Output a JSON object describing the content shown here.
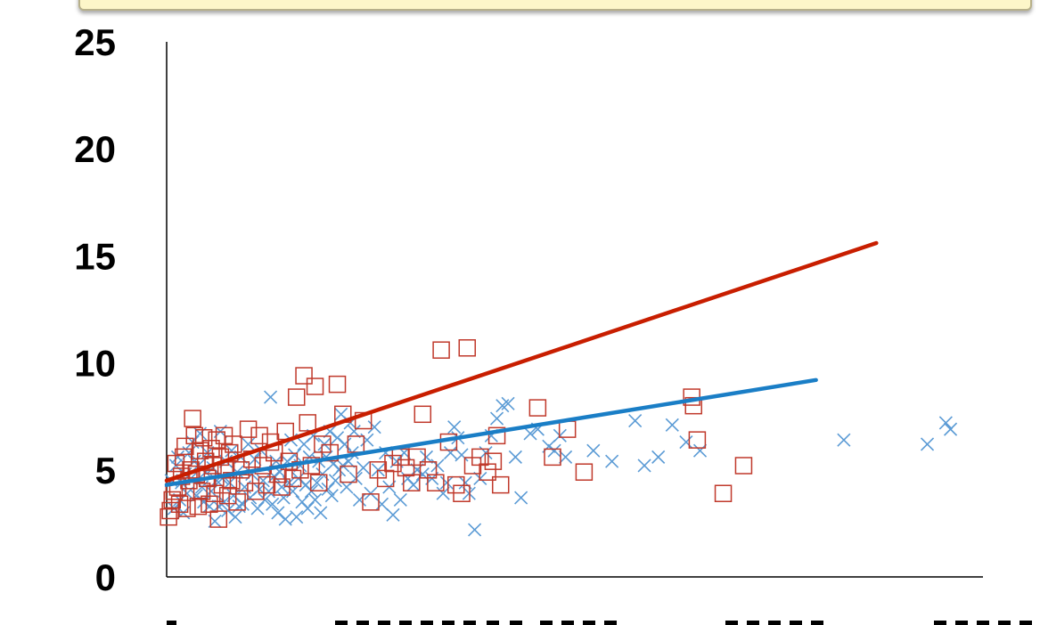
{
  "chart_data": {
    "type": "scatter",
    "title": "",
    "xlabel": "",
    "ylabel": "",
    "ylim": [
      0,
      25
    ],
    "y_ticks": [
      "0",
      "5",
      "10",
      "15",
      "20",
      "25"
    ],
    "grid": false,
    "legend": "none",
    "series": [
      {
        "marker": "x",
        "color": "#5b9bd5",
        "trend_color": "#1a7ec6",
        "trend": [
          [
            0,
            4.3
          ],
          [
            700,
            9.2
          ]
        ],
        "points": [
          [
            5,
            4.5
          ],
          [
            8,
            3.2
          ],
          [
            10,
            5.2
          ],
          [
            12,
            5.6
          ],
          [
            14,
            3.6
          ],
          [
            16,
            4.4
          ],
          [
            18,
            3.0
          ],
          [
            20,
            4.8
          ],
          [
            22,
            3.9
          ],
          [
            24,
            5.8
          ],
          [
            26,
            4.6
          ],
          [
            28,
            6.3
          ],
          [
            30,
            5.4
          ],
          [
            32,
            3.8
          ],
          [
            34,
            5.2
          ],
          [
            36,
            6.7
          ],
          [
            38,
            4.2
          ],
          [
            40,
            3.5
          ],
          [
            42,
            4.9
          ],
          [
            44,
            5.8
          ],
          [
            46,
            3.3
          ],
          [
            48,
            4.0
          ],
          [
            50,
            5.1
          ],
          [
            52,
            2.6
          ],
          [
            54,
            4.5
          ],
          [
            56,
            3.3
          ],
          [
            58,
            6.8
          ],
          [
            60,
            4.6
          ],
          [
            62,
            3.5
          ],
          [
            64,
            5.4
          ],
          [
            66,
            3.1
          ],
          [
            68,
            4.4
          ],
          [
            70,
            5.9
          ],
          [
            72,
            3.8
          ],
          [
            74,
            2.8
          ],
          [
            76,
            4.9
          ],
          [
            78,
            3.3
          ],
          [
            80,
            5.6
          ],
          [
            82,
            3.4
          ],
          [
            84,
            4.2
          ],
          [
            88,
            6.2
          ],
          [
            90,
            3.7
          ],
          [
            92,
            4.8
          ],
          [
            95,
            5.5
          ],
          [
            98,
            3.2
          ],
          [
            100,
            4.1
          ],
          [
            102,
            5.9
          ],
          [
            104,
            4.5
          ],
          [
            106,
            3.6
          ],
          [
            110,
            4.0
          ],
          [
            112,
            8.4
          ],
          [
            114,
            3.4
          ],
          [
            116,
            4.7
          ],
          [
            118,
            5.4
          ],
          [
            120,
            3.0
          ],
          [
            122,
            4.9
          ],
          [
            124,
            4.2
          ],
          [
            126,
            3.7
          ],
          [
            128,
            2.7
          ],
          [
            130,
            5.4
          ],
          [
            132,
            4.4
          ],
          [
            134,
            6.4
          ],
          [
            136,
            4.0
          ],
          [
            138,
            5.7
          ],
          [
            140,
            2.8
          ],
          [
            142,
            4.6
          ],
          [
            144,
            5.2
          ],
          [
            146,
            3.5
          ],
          [
            148,
            6.2
          ],
          [
            150,
            4.3
          ],
          [
            152,
            3.2
          ],
          [
            154,
            5.6
          ],
          [
            156,
            4.0
          ],
          [
            158,
            6.6
          ],
          [
            160,
            3.6
          ],
          [
            162,
            4.4
          ],
          [
            164,
            5.4
          ],
          [
            166,
            3.0
          ],
          [
            168,
            4.8
          ],
          [
            170,
            6.2
          ],
          [
            172,
            5.6
          ],
          [
            174,
            4.1
          ],
          [
            176,
            6.8
          ],
          [
            178,
            3.8
          ],
          [
            180,
            5.3
          ],
          [
            182,
            4.5
          ],
          [
            184,
            6.5
          ],
          [
            186,
            5.0
          ],
          [
            188,
            7.6
          ],
          [
            190,
            5.2
          ],
          [
            192,
            6.2
          ],
          [
            194,
            4.2
          ],
          [
            196,
            5.4
          ],
          [
            198,
            7.2
          ],
          [
            200,
            5.8
          ],
          [
            202,
            6.8
          ],
          [
            204,
            4.6
          ],
          [
            208,
            3.6
          ],
          [
            212,
            5.1
          ],
          [
            216,
            6.4
          ],
          [
            220,
            3.9
          ],
          [
            224,
            7.0
          ],
          [
            228,
            5.0
          ],
          [
            232,
            3.4
          ],
          [
            236,
            5.8
          ],
          [
            240,
            4.2
          ],
          [
            244,
            2.9
          ],
          [
            248,
            5.4
          ],
          [
            252,
            3.6
          ],
          [
            256,
            5.8
          ],
          [
            260,
            4.6
          ],
          [
            266,
            4.3
          ],
          [
            270,
            5.0
          ],
          [
            276,
            4.8
          ],
          [
            280,
            5.6
          ],
          [
            286,
            4.6
          ],
          [
            292,
            5.2
          ],
          [
            298,
            3.9
          ],
          [
            302,
            4.4
          ],
          [
            306,
            5.8
          ],
          [
            310,
            7.0
          ],
          [
            314,
            6.5
          ],
          [
            318,
            5.7
          ],
          [
            322,
            4.4
          ],
          [
            326,
            3.9
          ],
          [
            332,
            2.2
          ],
          [
            338,
            4.6
          ],
          [
            344,
            5.8
          ],
          [
            350,
            6.6
          ],
          [
            356,
            7.4
          ],
          [
            362,
            8.0
          ],
          [
            368,
            8.1
          ],
          [
            376,
            5.6
          ],
          [
            382,
            3.7
          ],
          [
            392,
            6.7
          ],
          [
            400,
            6.9
          ],
          [
            412,
            6.1
          ],
          [
            418,
            5.9
          ],
          [
            424,
            6.6
          ],
          [
            430,
            5.6
          ],
          [
            460,
            5.9
          ],
          [
            480,
            5.4
          ],
          [
            505,
            7.3
          ],
          [
            515,
            5.2
          ],
          [
            530,
            5.6
          ],
          [
            545,
            7.1
          ],
          [
            560,
            6.3
          ],
          [
            575,
            5.9
          ],
          [
            730,
            6.4
          ],
          [
            820,
            6.2
          ],
          [
            840,
            7.2
          ],
          [
            845,
            6.9
          ]
        ]
      },
      {
        "marker": "square",
        "color": "#c0392b",
        "trend_color": "#c81e00",
        "trend": [
          [
            0,
            4.5
          ],
          [
            765,
            15.6
          ]
        ],
        "points": [
          [
            2,
            2.8
          ],
          [
            4,
            3.1
          ],
          [
            6,
            3.6
          ],
          [
            8,
            4.0
          ],
          [
            10,
            5.3
          ],
          [
            12,
            4.2
          ],
          [
            14,
            3.4
          ],
          [
            16,
            4.7
          ],
          [
            18,
            5.6
          ],
          [
            20,
            6.1
          ],
          [
            22,
            3.2
          ],
          [
            24,
            4.5
          ],
          [
            26,
            5.0
          ],
          [
            28,
            7.4
          ],
          [
            30,
            6.6
          ],
          [
            32,
            4.8
          ],
          [
            34,
            3.3
          ],
          [
            36,
            5.9
          ],
          [
            38,
            4.0
          ],
          [
            40,
            6.5
          ],
          [
            42,
            5.4
          ],
          [
            44,
            4.6
          ],
          [
            46,
            3.4
          ],
          [
            48,
            6.0
          ],
          [
            50,
            5.2
          ],
          [
            52,
            3.9
          ],
          [
            54,
            6.4
          ],
          [
            56,
            2.7
          ],
          [
            58,
            5.6
          ],
          [
            60,
            4.3
          ],
          [
            62,
            6.6
          ],
          [
            64,
            5.0
          ],
          [
            66,
            3.8
          ],
          [
            68,
            5.8
          ],
          [
            70,
            4.5
          ],
          [
            72,
            6.2
          ],
          [
            76,
            3.5
          ],
          [
            80,
            5.0
          ],
          [
            84,
            4.4
          ],
          [
            88,
            6.9
          ],
          [
            92,
            5.5
          ],
          [
            96,
            4.0
          ],
          [
            100,
            6.6
          ],
          [
            104,
            5.2
          ],
          [
            108,
            4.3
          ],
          [
            112,
            6.3
          ],
          [
            116,
            5.8
          ],
          [
            120,
            4.8
          ],
          [
            124,
            4.2
          ],
          [
            128,
            6.8
          ],
          [
            132,
            5.4
          ],
          [
            136,
            4.6
          ],
          [
            140,
            8.4
          ],
          [
            144,
            5.0
          ],
          [
            148,
            9.4
          ],
          [
            152,
            7.2
          ],
          [
            156,
            5.2
          ],
          [
            160,
            8.9
          ],
          [
            164,
            4.4
          ],
          [
            168,
            6.2
          ],
          [
            176,
            5.8
          ],
          [
            184,
            9.0
          ],
          [
            190,
            7.6
          ],
          [
            196,
            4.8
          ],
          [
            204,
            6.2
          ],
          [
            212,
            7.3
          ],
          [
            220,
            3.5
          ],
          [
            228,
            5.0
          ],
          [
            236,
            4.6
          ],
          [
            244,
            5.3
          ],
          [
            252,
            5.6
          ],
          [
            258,
            5.1
          ],
          [
            264,
            4.4
          ],
          [
            270,
            5.6
          ],
          [
            276,
            7.6
          ],
          [
            282,
            5.0
          ],
          [
            290,
            4.4
          ],
          [
            296,
            10.6
          ],
          [
            304,
            6.3
          ],
          [
            312,
            4.3
          ],
          [
            318,
            3.9
          ],
          [
            324,
            10.7
          ],
          [
            330,
            5.2
          ],
          [
            338,
            5.6
          ],
          [
            346,
            4.9
          ],
          [
            352,
            5.4
          ],
          [
            356,
            6.6
          ],
          [
            360,
            4.3
          ],
          [
            400,
            7.9
          ],
          [
            416,
            5.6
          ],
          [
            432,
            6.9
          ],
          [
            450,
            4.9
          ],
          [
            566,
            8.4
          ],
          [
            568,
            8.0
          ],
          [
            572,
            6.4
          ],
          [
            600,
            3.9
          ],
          [
            622,
            5.2
          ]
        ]
      }
    ]
  }
}
